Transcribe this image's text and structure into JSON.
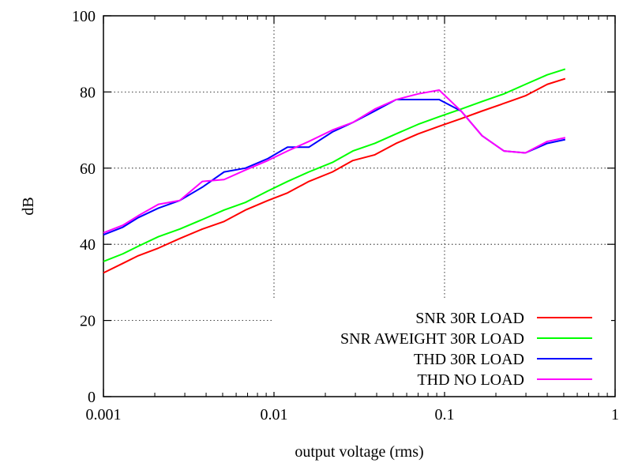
{
  "chart_data": {
    "type": "line",
    "title": "",
    "xlabel": "output voltage (rms)",
    "ylabel": "dB",
    "xscale": "log",
    "xlim": [
      0.001,
      1
    ],
    "ylim": [
      0,
      100
    ],
    "x_ticks": [
      {
        "value": 0.001,
        "label": "0.001"
      },
      {
        "value": 0.01,
        "label": "0.01"
      },
      {
        "value": 0.1,
        "label": "0.1"
      },
      {
        "value": 1,
        "label": "1"
      }
    ],
    "y_ticks": [
      {
        "value": 0,
        "label": "0"
      },
      {
        "value": 20,
        "label": "20"
      },
      {
        "value": 40,
        "label": "40"
      },
      {
        "value": 60,
        "label": "60"
      },
      {
        "value": 80,
        "label": "80"
      },
      {
        "value": 100,
        "label": "100"
      }
    ],
    "grid": true,
    "legend_position": "bottom-right",
    "series": [
      {
        "name": "SNR 30R LOAD",
        "color": "#ff0000",
        "points": [
          [
            0.001,
            32.5
          ],
          [
            0.0013,
            35
          ],
          [
            0.0016,
            37
          ],
          [
            0.0021,
            39
          ],
          [
            0.0028,
            41.5
          ],
          [
            0.0038,
            44
          ],
          [
            0.0051,
            46
          ],
          [
            0.0068,
            49
          ],
          [
            0.0092,
            51.5
          ],
          [
            0.012,
            53.5
          ],
          [
            0.016,
            56.5
          ],
          [
            0.022,
            59
          ],
          [
            0.029,
            62
          ],
          [
            0.039,
            63.5
          ],
          [
            0.052,
            66.5
          ],
          [
            0.07,
            69
          ],
          [
            0.093,
            71
          ],
          [
            0.125,
            73
          ],
          [
            0.166,
            75
          ],
          [
            0.223,
            77
          ],
          [
            0.298,
            79
          ],
          [
            0.4,
            82
          ],
          [
            0.51,
            83.5
          ]
        ]
      },
      {
        "name": "SNR AWEIGHT 30R LOAD",
        "color": "#00ff00",
        "points": [
          [
            0.001,
            35.5
          ],
          [
            0.0013,
            37.5
          ],
          [
            0.0016,
            39.5
          ],
          [
            0.0021,
            42
          ],
          [
            0.0028,
            44
          ],
          [
            0.0038,
            46.5
          ],
          [
            0.0051,
            49
          ],
          [
            0.0068,
            51
          ],
          [
            0.0092,
            54
          ],
          [
            0.012,
            56.5
          ],
          [
            0.016,
            59
          ],
          [
            0.022,
            61.5
          ],
          [
            0.029,
            64.5
          ],
          [
            0.039,
            66.5
          ],
          [
            0.052,
            69
          ],
          [
            0.07,
            71.5
          ],
          [
            0.093,
            73.5
          ],
          [
            0.125,
            75.5
          ],
          [
            0.166,
            77.5
          ],
          [
            0.223,
            79.5
          ],
          [
            0.298,
            82
          ],
          [
            0.4,
            84.5
          ],
          [
            0.51,
            86
          ]
        ]
      },
      {
        "name": "THD 30R LOAD",
        "color": "#0000ff",
        "points": [
          [
            0.001,
            42.5
          ],
          [
            0.0013,
            44.5
          ],
          [
            0.0016,
            47
          ],
          [
            0.0021,
            49.5
          ],
          [
            0.0028,
            51.5
          ],
          [
            0.0038,
            55
          ],
          [
            0.0051,
            59
          ],
          [
            0.0068,
            60
          ],
          [
            0.0092,
            62.5
          ],
          [
            0.012,
            65.5
          ],
          [
            0.016,
            65.5
          ],
          [
            0.022,
            69.5
          ],
          [
            0.029,
            72
          ],
          [
            0.039,
            75
          ],
          [
            0.052,
            78
          ],
          [
            0.07,
            78
          ],
          [
            0.093,
            78
          ],
          [
            0.125,
            75
          ],
          [
            0.166,
            68.5
          ],
          [
            0.223,
            64.5
          ],
          [
            0.298,
            64
          ],
          [
            0.4,
            66.5
          ],
          [
            0.51,
            67.5
          ]
        ]
      },
      {
        "name": "THD NO LOAD",
        "color": "#ff00ff",
        "points": [
          [
            0.001,
            43
          ],
          [
            0.0013,
            45
          ],
          [
            0.0016,
            47.5
          ],
          [
            0.0021,
            50.5
          ],
          [
            0.0028,
            51.5
          ],
          [
            0.0038,
            56.5
          ],
          [
            0.0051,
            57
          ],
          [
            0.0068,
            59.5
          ],
          [
            0.0092,
            62
          ],
          [
            0.012,
            64.5
          ],
          [
            0.016,
            67
          ],
          [
            0.022,
            70
          ],
          [
            0.029,
            72
          ],
          [
            0.039,
            75.5
          ],
          [
            0.052,
            78
          ],
          [
            0.07,
            79.5
          ],
          [
            0.093,
            80.5
          ],
          [
            0.125,
            75
          ],
          [
            0.166,
            68.5
          ],
          [
            0.223,
            64.5
          ],
          [
            0.298,
            64
          ],
          [
            0.4,
            67
          ],
          [
            0.51,
            68
          ]
        ]
      }
    ]
  }
}
